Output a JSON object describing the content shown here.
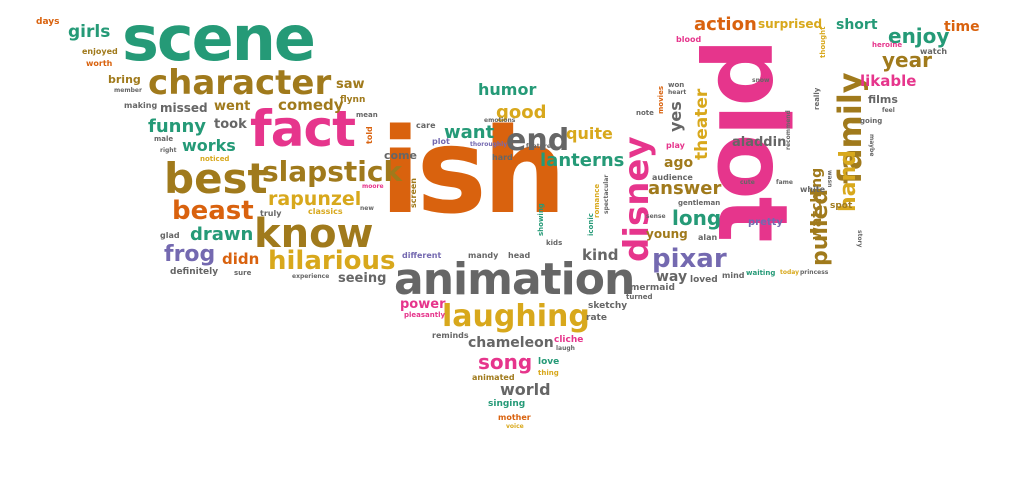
{
  "palette": {
    "orange": "#d9620e",
    "pink": "#e6358c",
    "green": "#259a77",
    "olive": "#a07a1c",
    "gold": "#d8a81c",
    "gray": "#666666",
    "purple": "#7469b0",
    "teal": "#3aa37f"
  },
  "words": [
    "ish",
    "plot",
    "scene",
    "animation",
    "fact",
    "know",
    "character",
    "best",
    "slapstick",
    "family",
    "disney",
    "laughing",
    "hilarious",
    "beast",
    "rapunzel",
    "end",
    "pixar",
    "funny",
    "frog",
    "drawn",
    "song",
    "lanterns",
    "answer",
    "pulled",
    "hand",
    "enjoy",
    "action",
    "year",
    "good",
    "want",
    "humor",
    "comedy",
    "works",
    "girls",
    "quite",
    "long",
    "theater",
    "watching",
    "likable",
    "world",
    "chameleon",
    "aladdin",
    "yes",
    "short",
    "surprised",
    "time",
    "days",
    "enjoyed",
    "worth",
    "bring",
    "saw",
    "missed",
    "went",
    "took",
    "didn",
    "seeing",
    "power",
    "kind",
    "way",
    "ago",
    "young",
    "alan",
    "mind",
    "loved",
    "mermaid",
    "sketchy",
    "rate",
    "cliche",
    "love",
    "singing",
    "mother",
    "voice",
    "animated",
    "thing",
    "reminds",
    "pleasantly",
    "come",
    "plot",
    "care",
    "mean",
    "flynn",
    "making",
    "male",
    "right",
    "noticed",
    "glad",
    "sure",
    "definitely",
    "truly",
    "classics",
    "moore",
    "new",
    "told",
    "screen",
    "different",
    "mandy",
    "head",
    "kids",
    "showing",
    "iconic",
    "romance",
    "spectacular",
    "features",
    "emotions",
    "thoroughly",
    "hard",
    "won",
    "heart",
    "note",
    "movies",
    "play",
    "audience",
    "sense",
    "gentleman",
    "cute",
    "white",
    "spot",
    "pretty",
    "waiting",
    "today",
    "princess",
    "films",
    "going",
    "feel",
    "watch",
    "heroine",
    "thought",
    "recommend",
    "really",
    "maybe",
    "story",
    "wasn",
    "laugh",
    "experience",
    "blood",
    "snow",
    "fame",
    "member",
    "turned"
  ]
}
